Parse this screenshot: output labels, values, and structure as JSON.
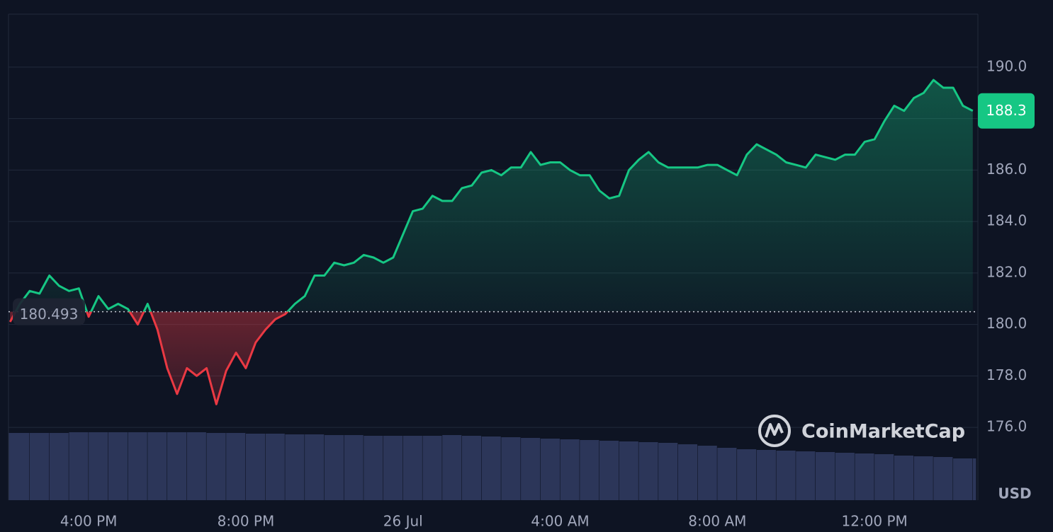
{
  "chart_data": {
    "type": "line",
    "x": [
      14,
      14.25,
      14.5,
      14.75,
      15,
      15.25,
      15.5,
      15.75,
      16,
      16.25,
      16.5,
      16.75,
      17,
      17.25,
      17.5,
      17.75,
      18,
      18.25,
      18.5,
      18.75,
      19,
      19.25,
      19.5,
      19.75,
      20,
      20.25,
      20.5,
      20.75,
      21,
      21.25,
      21.5,
      21.75,
      22,
      22.25,
      22.5,
      22.75,
      23,
      23.25,
      23.5,
      23.75,
      24,
      24.25,
      24.5,
      24.75,
      25,
      25.25,
      25.5,
      25.75,
      26,
      26.25,
      26.5,
      26.75,
      27,
      27.25,
      27.5,
      27.75,
      28,
      28.25,
      28.5,
      28.75,
      29,
      29.25,
      29.5,
      29.75,
      30,
      30.25,
      30.5,
      30.75,
      31,
      31.25,
      31.5,
      31.75,
      32,
      32.25,
      32.5,
      32.75,
      33,
      33.25,
      33.5,
      33.75,
      34,
      34.25,
      34.5,
      34.75,
      35,
      35.25,
      35.5,
      35.75,
      36,
      36.25,
      36.5,
      36.75,
      37,
      37.25,
      37.5,
      37.75,
      38,
      38.25,
      38.5
    ],
    "values": [
      180.1,
      180.8,
      181.3,
      181.2,
      181.9,
      181.5,
      181.3,
      181.4,
      180.3,
      181.1,
      180.6,
      180.8,
      180.6,
      180.0,
      180.8,
      179.8,
      178.3,
      177.3,
      178.3,
      178.0,
      178.3,
      176.9,
      178.2,
      178.9,
      178.3,
      179.3,
      179.8,
      180.2,
      180.4,
      180.8,
      181.1,
      181.9,
      181.9,
      182.4,
      182.3,
      182.4,
      182.7,
      182.6,
      182.4,
      182.6,
      183.5,
      184.4,
      184.5,
      185.0,
      184.8,
      184.8,
      185.3,
      185.4,
      185.9,
      186.0,
      185.8,
      186.1,
      186.1,
      186.7,
      186.2,
      186.3,
      186.3,
      186.0,
      185.8,
      185.8,
      185.2,
      184.9,
      185.0,
      186.0,
      186.4,
      186.7,
      186.3,
      186.1,
      186.1,
      186.1,
      186.1,
      186.2,
      186.2,
      186.0,
      185.8,
      186.6,
      187.0,
      186.8,
      186.6,
      186.3,
      186.2,
      186.1,
      186.6,
      186.5,
      186.4,
      186.6,
      186.6,
      187.1,
      187.2,
      187.9,
      188.5,
      188.3,
      188.8,
      189.0,
      189.5,
      189.2,
      189.2,
      188.5,
      188.3
    ],
    "up_color": "#16c784",
    "down_color": "#ea3943",
    "baseline": 180.493,
    "current_price": 188.3,
    "currency": "USD",
    "watermark": "CoinMarketCap",
    "grid": true,
    "xlim": [
      13.96,
      38.63
    ],
    "xticks": [
      {
        "value": 16,
        "label": "4:00 PM"
      },
      {
        "value": 20,
        "label": "8:00 PM"
      },
      {
        "value": 24,
        "label": "26 Jul"
      },
      {
        "value": 28,
        "label": "4:00 AM"
      },
      {
        "value": 32,
        "label": "8:00 AM"
      },
      {
        "value": 36,
        "label": "12:00 PM"
      }
    ],
    "ylim": [
      173.17,
      192.06
    ],
    "yticks": [
      {
        "value": 176,
        "label": "176.0"
      },
      {
        "value": 178,
        "label": "178.0"
      },
      {
        "value": 180,
        "label": "180.0"
      },
      {
        "value": 182,
        "label": "182.0"
      },
      {
        "value": 184,
        "label": "184.0"
      },
      {
        "value": 186,
        "label": "186.0"
      },
      {
        "value": 188,
        "label": "188.0"
      },
      {
        "value": 190,
        "label": "190.0"
      }
    ],
    "volume": {
      "color": "#2c3659",
      "ylim": [
        0,
        100
      ],
      "x": [
        14,
        14.5,
        15,
        15.5,
        16,
        16.5,
        17,
        17.5,
        18,
        18.5,
        19,
        19.5,
        20,
        20.5,
        21,
        21.5,
        22,
        22.5,
        23,
        23.5,
        24,
        24.5,
        25,
        25.5,
        26,
        26.5,
        27,
        27.5,
        28,
        28.5,
        29,
        29.5,
        30,
        30.5,
        31,
        31.5,
        32,
        32.5,
        33,
        33.5,
        34,
        34.5,
        35,
        35.5,
        36,
        36.5,
        37,
        37.5,
        38,
        38.5
      ],
      "values": [
        95,
        95,
        95,
        96,
        96,
        96,
        96,
        96,
        96,
        96,
        95,
        95,
        94,
        94,
        93,
        93,
        92,
        92,
        91,
        91,
        91,
        91,
        92,
        91,
        90,
        89,
        88,
        87,
        86,
        85,
        84,
        83,
        82,
        81,
        79,
        77,
        74,
        72,
        71,
        70,
        69,
        68,
        67,
        66,
        65,
        63,
        62,
        61,
        59,
        59
      ]
    }
  }
}
